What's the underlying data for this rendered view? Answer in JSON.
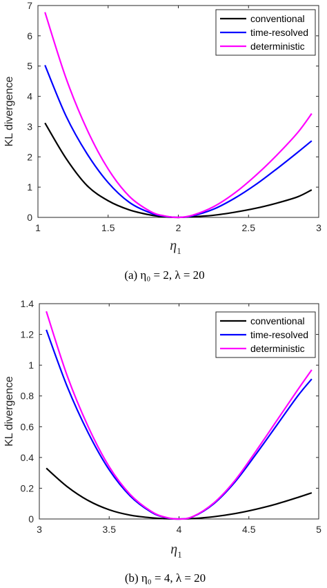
{
  "chart_data": [
    {
      "type": "line",
      "xlabel_symbol": "η",
      "xlabel_subscript": "1",
      "ylabel": "KL divergence",
      "xlim": [
        1,
        3
      ],
      "ylim": [
        0,
        7
      ],
      "xticks": [
        1,
        1.5,
        2,
        2.5,
        3
      ],
      "xtick_labels": [
        "1",
        "1.5",
        "2",
        "2.5",
        "3"
      ],
      "yticks": [
        0,
        1,
        2,
        3,
        4,
        5,
        6,
        7
      ],
      "ytick_labels": [
        "0",
        "1",
        "2",
        "3",
        "4",
        "5",
        "6",
        "7"
      ],
      "legend_position": "top-right",
      "caption": "(a) η₀ = 2, λ = 20",
      "series": [
        {
          "name": "conventional",
          "color": "#000000",
          "x": [
            1.05,
            1.2,
            1.35,
            1.5,
            1.65,
            1.8,
            1.9,
            2.0,
            2.1,
            2.25,
            2.4,
            2.55,
            2.7,
            2.85,
            2.95
          ],
          "y": [
            3.12,
            1.95,
            1.05,
            0.55,
            0.25,
            0.08,
            0.02,
            0.0,
            0.02,
            0.07,
            0.17,
            0.3,
            0.47,
            0.68,
            0.91
          ]
        },
        {
          "name": "time-resolved",
          "color": "#0000ff",
          "x": [
            1.05,
            1.2,
            1.35,
            1.5,
            1.65,
            1.8,
            1.9,
            2.0,
            2.1,
            2.25,
            2.4,
            2.55,
            2.7,
            2.85,
            2.95
          ],
          "y": [
            5.03,
            3.35,
            2.1,
            1.15,
            0.5,
            0.15,
            0.04,
            0.0,
            0.05,
            0.27,
            0.63,
            1.08,
            1.6,
            2.15,
            2.53
          ]
        },
        {
          "name": "deterministic",
          "color": "#ff00ff",
          "x": [
            1.05,
            1.2,
            1.35,
            1.5,
            1.65,
            1.8,
            1.9,
            2.0,
            2.1,
            2.25,
            2.4,
            2.55,
            2.7,
            2.85,
            2.95
          ],
          "y": [
            6.78,
            4.6,
            2.9,
            1.6,
            0.7,
            0.2,
            0.05,
            0.0,
            0.07,
            0.35,
            0.8,
            1.38,
            2.05,
            2.8,
            3.43
          ]
        }
      ]
    },
    {
      "type": "line",
      "xlabel_symbol": "η",
      "xlabel_subscript": "1",
      "ylabel": "KL divergence",
      "xlim": [
        3,
        5
      ],
      "ylim": [
        0,
        1.4
      ],
      "xticks": [
        3,
        3.5,
        4,
        4.5,
        5
      ],
      "xtick_labels": [
        "3",
        "3.5",
        "4",
        "4.5",
        "5"
      ],
      "yticks": [
        0,
        0.2,
        0.4,
        0.6,
        0.8,
        1.0,
        1.2,
        1.4
      ],
      "ytick_labels": [
        "0",
        "0.2",
        "0.4",
        "0.6",
        "0.8",
        "1",
        "1.2",
        "1.4"
      ],
      "legend_position": "top-right",
      "caption": "(b) η₀ = 4, λ = 20",
      "series": [
        {
          "name": "conventional",
          "color": "#000000",
          "x": [
            3.05,
            3.2,
            3.35,
            3.5,
            3.65,
            3.8,
            3.9,
            4.0,
            4.1,
            4.25,
            4.4,
            4.55,
            4.7,
            4.85,
            4.95
          ],
          "y": [
            0.33,
            0.21,
            0.12,
            0.06,
            0.025,
            0.008,
            0.002,
            0.0,
            0.003,
            0.015,
            0.035,
            0.063,
            0.098,
            0.14,
            0.17
          ]
        },
        {
          "name": "time-resolved",
          "color": "#0000ff",
          "x": [
            3.05,
            3.2,
            3.35,
            3.5,
            3.65,
            3.8,
            3.9,
            4.0,
            4.1,
            4.25,
            4.4,
            4.55,
            4.7,
            4.85,
            4.95
          ],
          "y": [
            1.23,
            0.86,
            0.56,
            0.32,
            0.15,
            0.045,
            0.01,
            0.0,
            0.015,
            0.1,
            0.24,
            0.42,
            0.61,
            0.8,
            0.91
          ]
        },
        {
          "name": "deterministic",
          "color": "#ff00ff",
          "x": [
            3.05,
            3.2,
            3.35,
            3.5,
            3.65,
            3.8,
            3.9,
            4.0,
            4.1,
            4.25,
            4.4,
            4.55,
            4.7,
            4.85,
            4.95
          ],
          "y": [
            1.35,
            0.93,
            0.6,
            0.34,
            0.16,
            0.05,
            0.012,
            0.0,
            0.016,
            0.105,
            0.25,
            0.44,
            0.64,
            0.84,
            0.97
          ]
        }
      ]
    }
  ]
}
